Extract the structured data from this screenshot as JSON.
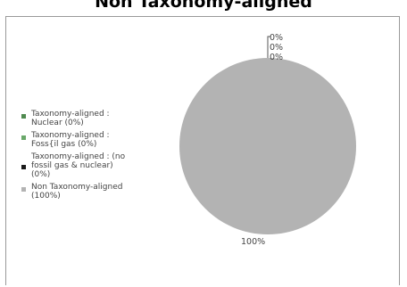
{
  "chart_data": {
    "type": "pie",
    "title": "Non Taxonomy-aligned",
    "legend_position": "left",
    "slices": [
      {
        "label": "Taxonomy-aligned : Nuclear (0%)",
        "label_lines": [
          "Taxonomy-aligned :",
          "Nuclear (0%)"
        ],
        "value": 0,
        "data_label": "0%",
        "color": "#4f8a4f"
      },
      {
        "label": "Taxonomy-aligned : Foss{il gas (0%)",
        "label_lines": [
          "Taxonomy-aligned :",
          "Foss{il gas (0%)"
        ],
        "value": 0,
        "data_label": "0%",
        "color": "#6aa86a"
      },
      {
        "label": "Taxonomy-aligned : (no fossil gas & nuclear) (0%)",
        "label_lines": [
          "Taxonomy-aligned : (no",
          "fossil gas & nuclear)",
          "(0%)"
        ],
        "value": 0,
        "data_label": "0%",
        "color": "#1a1a1a"
      },
      {
        "label": "Non Taxonomy-aligned (100%)",
        "label_lines": [
          "Non Taxonomy-aligned",
          "(100%)"
        ],
        "value": 100,
        "data_label": "100%",
        "color": "#b3b3b3"
      }
    ]
  }
}
